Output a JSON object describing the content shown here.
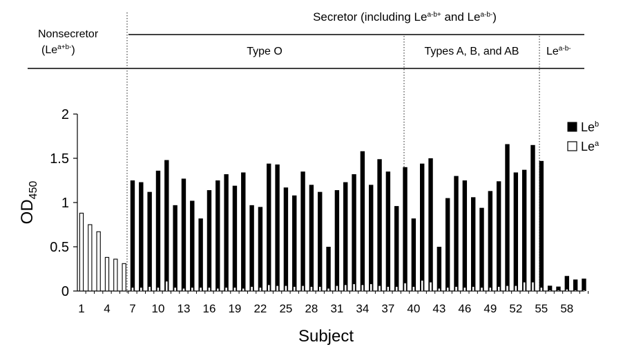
{
  "groups": {
    "secretor_header": "Secretor (including Le^a-b+ and Le^a-b-)",
    "nonsecretor_line1": "Nonsecretor",
    "nonsecretor_line2": "(Le^a+b-)",
    "type_o": "Type O",
    "types_abab": "Types A, B, and AB",
    "lenull": "Le^a-b-"
  },
  "chart_data": {
    "type": "bar",
    "xlabel": "Subject",
    "ylabel": "OD450",
    "ylim": [
      0,
      2
    ],
    "yticks": [
      0,
      0.5,
      1,
      1.5,
      2
    ],
    "ytick_labels": [
      "0",
      "0.5",
      "1",
      "1.5",
      "2"
    ],
    "x_tick_labels": [
      "1",
      "4",
      "7",
      "10",
      "13",
      "16",
      "19",
      "22",
      "25",
      "28",
      "31",
      "34",
      "37",
      "40",
      "43",
      "46",
      "49",
      "52",
      "55",
      "58"
    ],
    "x_tick_values": [
      1,
      4,
      7,
      10,
      13,
      16,
      19,
      22,
      25,
      28,
      31,
      34,
      37,
      40,
      43,
      46,
      49,
      52,
      55,
      58
    ],
    "legend_position": "right",
    "categories": [
      1,
      2,
      3,
      4,
      5,
      6,
      7,
      8,
      9,
      10,
      11,
      12,
      13,
      14,
      15,
      16,
      17,
      18,
      19,
      20,
      21,
      22,
      23,
      24,
      25,
      26,
      27,
      28,
      29,
      30,
      31,
      32,
      33,
      34,
      35,
      36,
      37,
      38,
      39,
      40,
      41,
      42,
      43,
      44,
      45,
      46,
      47,
      48,
      49,
      50,
      51,
      52,
      53,
      54,
      55,
      56,
      57,
      58,
      59,
      60
    ],
    "series": [
      {
        "name": "Le^b",
        "color": "#000000",
        "values": [
          0,
          0,
          0,
          0,
          0,
          0,
          1.25,
          1.23,
          1.12,
          1.36,
          1.48,
          0.97,
          1.27,
          1.02,
          0.82,
          1.14,
          1.25,
          1.32,
          1.19,
          1.34,
          0.97,
          0.95,
          1.44,
          1.43,
          1.17,
          1.08,
          1.35,
          1.2,
          1.12,
          0.5,
          1.14,
          1.23,
          1.32,
          1.58,
          1.2,
          1.49,
          1.35,
          0.96,
          1.4,
          0.82,
          1.44,
          1.5,
          0.5,
          1.05,
          1.3,
          1.25,
          1.06,
          0.94,
          1.13,
          1.24,
          1.66,
          1.34,
          1.37,
          1.65,
          1.47,
          0.06,
          0.05,
          0.17,
          0.13,
          0.14
        ]
      },
      {
        "name": "Le^a",
        "color": "#ffffff",
        "values": [
          0.88,
          0.75,
          0.67,
          0.38,
          0.36,
          0.31,
          0.04,
          0.04,
          0.05,
          0.04,
          0.11,
          0.04,
          0.03,
          0.04,
          0.04,
          0.04,
          0.03,
          0.04,
          0.04,
          0.03,
          0.05,
          0.04,
          0.07,
          0.06,
          0.06,
          0.05,
          0.06,
          0.05,
          0.05,
          0.03,
          0.06,
          0.07,
          0.08,
          0.07,
          0.08,
          0.06,
          0.05,
          0.05,
          0.09,
          0.05,
          0.12,
          0.1,
          0.03,
          0.04,
          0.05,
          0.04,
          0.05,
          0.04,
          0.04,
          0.05,
          0.06,
          0.06,
          0.1,
          0.1,
          0.04,
          0.01,
          0.01,
          0.02,
          0.01,
          0.01
        ]
      }
    ]
  }
}
